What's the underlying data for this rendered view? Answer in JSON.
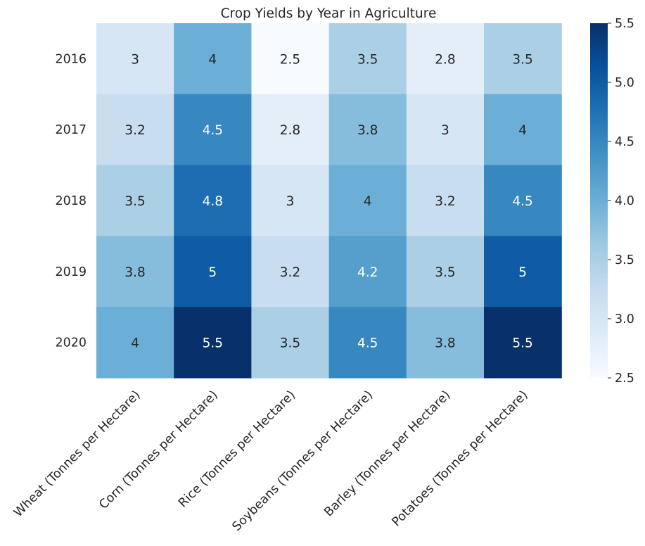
{
  "chart_data": {
    "type": "heatmap",
    "title": "Crop Yields by Year in Agriculture",
    "xlabel": "",
    "ylabel": "",
    "rows": [
      "2016",
      "2017",
      "2018",
      "2019",
      "2020"
    ],
    "columns": [
      "Wheat (Tonnes per Hectare)",
      "Corn (Tonnes per Hectare)",
      "Rice (Tonnes per Hectare)",
      "Soybeans (Tonnes per Hectare)",
      "Barley (Tonnes per Hectare)",
      "Potatoes (Tonnes per Hectare)"
    ],
    "values": [
      [
        3,
        4,
        2.5,
        3.5,
        2.8,
        3.5
      ],
      [
        3.2,
        4.5,
        2.8,
        3.8,
        3,
        4
      ],
      [
        3.5,
        4.8,
        3,
        4,
        3.2,
        4.5
      ],
      [
        3.8,
        5,
        3.2,
        4.2,
        3.5,
        5
      ],
      [
        4,
        5.5,
        3.5,
        4.5,
        3.8,
        5.5
      ]
    ],
    "value_labels": [
      [
        "3",
        "4",
        "2.5",
        "3.5",
        "2.8",
        "3.5"
      ],
      [
        "3.2",
        "4.5",
        "2.8",
        "3.8",
        "3",
        "4"
      ],
      [
        "3.5",
        "4.8",
        "3",
        "4",
        "3.2",
        "4.5"
      ],
      [
        "3.8",
        "5",
        "3.2",
        "4.2",
        "3.5",
        "5"
      ],
      [
        "4",
        "5.5",
        "3.5",
        "4.5",
        "3.8",
        "5.5"
      ]
    ],
    "colorbar": {
      "range": [
        2.5,
        5.5
      ],
      "ticks": [
        2.5,
        3.0,
        3.5,
        4.0,
        4.5,
        5.0,
        5.5
      ],
      "tick_labels": [
        "2.5",
        "3.0",
        "3.5",
        "4.0",
        "4.5",
        "5.0",
        "5.5"
      ]
    },
    "colormap": "Blues",
    "colors": {
      "low": "#f7fbff",
      "high": "#08306b",
      "text_dark": "#262626",
      "text_light": "#ffffff"
    },
    "grid": false
  }
}
